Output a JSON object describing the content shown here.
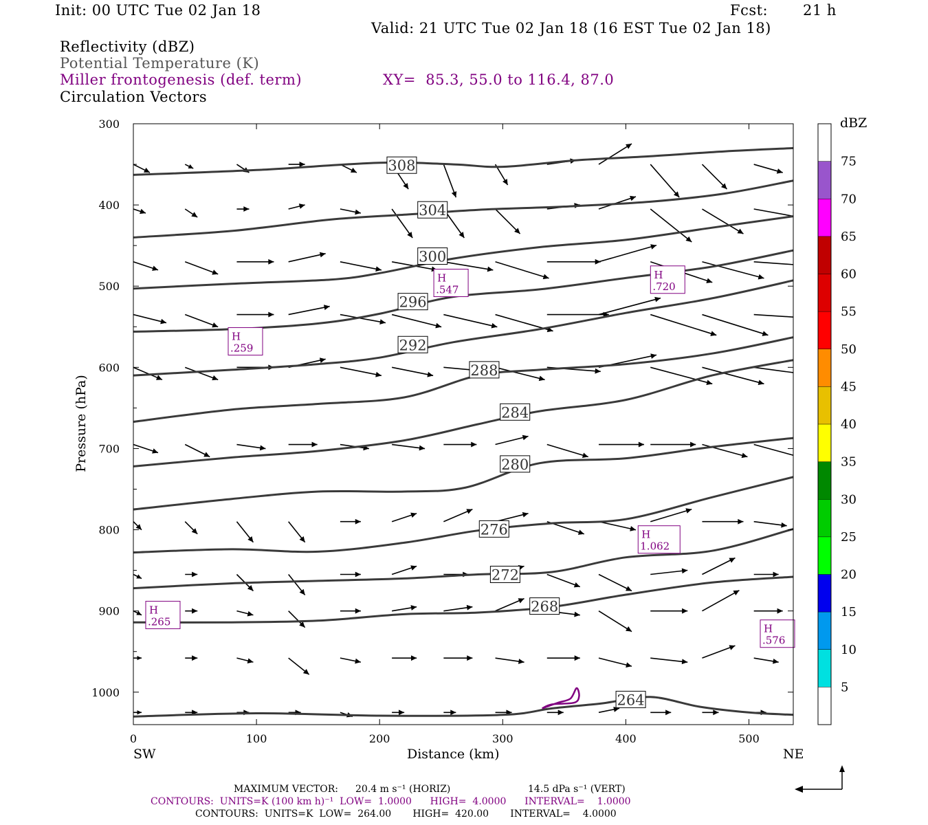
{
  "header": {
    "init": "Init: 00 UTC Tue 02 Jan 18",
    "fcst_label": "Fcst:",
    "fcst_value": "21 h",
    "valid": "Valid: 21 UTC Tue 02 Jan 18 (16 EST Tue 02 Jan 18)"
  },
  "legend": {
    "reflectivity": "Reflectivity (dBZ)",
    "theta": "Potential Temperature (K)",
    "frontogenesis": "Miller frontogenesis (def. term)",
    "xy": "XY=  85.3, 55.0 to 116.4, 87.0",
    "circulation": "Circulation Vectors"
  },
  "colors": {
    "theta_contour": "#3a3a3a",
    "frontogenesis": "#800080",
    "vector": "#000000"
  },
  "chart_data": {
    "type": "cross-section",
    "xlabel": "Distance (km)",
    "ylabel": "Pressure (hPa)",
    "xlim": [
      0,
      536
    ],
    "ylim": [
      1040,
      300
    ],
    "x_ticks": [
      0,
      100,
      200,
      300,
      400,
      500
    ],
    "y_ticks": [
      300,
      400,
      500,
      600,
      700,
      800,
      900,
      1000
    ],
    "x_end_labels": {
      "left": "SW",
      "right": "NE"
    },
    "colorbar": {
      "unit": "dBZ",
      "ticks": [
        5,
        10,
        15,
        20,
        25,
        30,
        35,
        40,
        45,
        50,
        55,
        60,
        65,
        70,
        75
      ],
      "colors": [
        "#00e0e0",
        "#0099ee",
        "#0000ee",
        "#00ff00",
        "#00cc00",
        "#008800",
        "#ffff00",
        "#e8c000",
        "#ff8c00",
        "#ff0000",
        "#dd0000",
        "#c00000",
        "#ff00ff",
        "#9955cc",
        "#ffffff"
      ]
    },
    "theta_contours": [
      {
        "label": "308",
        "label_at": [
          218,
          351
        ],
        "points": [
          [
            0,
            363
          ],
          [
            100,
            357
          ],
          [
            200,
            348
          ],
          [
            260,
            350
          ],
          [
            300,
            353
          ],
          [
            360,
            345
          ],
          [
            420,
            340
          ],
          [
            480,
            334
          ],
          [
            536,
            330
          ]
        ]
      },
      {
        "label": "304",
        "label_at": [
          243,
          406
        ],
        "points": [
          [
            0,
            440
          ],
          [
            80,
            432
          ],
          [
            160,
            418
          ],
          [
            220,
            412
          ],
          [
            280,
            406
          ],
          [
            350,
            402
          ],
          [
            420,
            396
          ],
          [
            480,
            386
          ],
          [
            536,
            370
          ]
        ]
      },
      {
        "label": "300",
        "label_at": [
          243,
          463
        ],
        "points": [
          [
            0,
            503
          ],
          [
            80,
            497
          ],
          [
            160,
            492
          ],
          [
            200,
            484
          ],
          [
            260,
            466
          ],
          [
            330,
            452
          ],
          [
            400,
            443
          ],
          [
            470,
            428
          ],
          [
            536,
            414
          ]
        ]
      },
      {
        "label": "296",
        "label_at": [
          227,
          519
        ],
        "points": [
          [
            0,
            556
          ],
          [
            80,
            553
          ],
          [
            150,
            546
          ],
          [
            200,
            534
          ],
          [
            260,
            513
          ],
          [
            330,
            504
          ],
          [
            400,
            490
          ],
          [
            470,
            476
          ],
          [
            536,
            456
          ]
        ]
      },
      {
        "label": "292",
        "label_at": [
          227,
          572
        ],
        "points": [
          [
            0,
            610
          ],
          [
            80,
            603
          ],
          [
            150,
            596
          ],
          [
            200,
            588
          ],
          [
            260,
            569
          ],
          [
            330,
            553
          ],
          [
            400,
            533
          ],
          [
            470,
            515
          ],
          [
            536,
            493
          ]
        ]
      },
      {
        "label": "288",
        "label_at": [
          285,
          603
        ],
        "points": [
          [
            0,
            667
          ],
          [
            80,
            652
          ],
          [
            150,
            645
          ],
          [
            220,
            637
          ],
          [
            280,
            610
          ],
          [
            330,
            603
          ],
          [
            400,
            596
          ],
          [
            470,
            583
          ],
          [
            536,
            563
          ]
        ]
      },
      {
        "label": "284",
        "label_at": [
          310,
          655
        ],
        "points": [
          [
            0,
            722
          ],
          [
            80,
            711
          ],
          [
            150,
            703
          ],
          [
            220,
            690
          ],
          [
            280,
            670
          ],
          [
            330,
            654
          ],
          [
            400,
            640
          ],
          [
            470,
            610
          ],
          [
            536,
            591
          ]
        ]
      },
      {
        "label": "280",
        "label_at": [
          310,
          719
        ],
        "points": [
          [
            0,
            775
          ],
          [
            80,
            762
          ],
          [
            150,
            753
          ],
          [
            220,
            753
          ],
          [
            270,
            748
          ],
          [
            330,
            718
          ],
          [
            400,
            712
          ],
          [
            470,
            698
          ],
          [
            536,
            687
          ]
        ]
      },
      {
        "label": "276",
        "label_at": [
          293,
          799
        ],
        "points": [
          [
            0,
            828
          ],
          [
            80,
            824
          ],
          [
            150,
            827
          ],
          [
            220,
            816
          ],
          [
            280,
            801
          ],
          [
            340,
            792
          ],
          [
            400,
            787
          ],
          [
            470,
            760
          ],
          [
            536,
            735
          ]
        ]
      },
      {
        "label": "272",
        "label_at": [
          302,
          855
        ],
        "points": [
          [
            0,
            872
          ],
          [
            80,
            866
          ],
          [
            150,
            863
          ],
          [
            220,
            860
          ],
          [
            280,
            855
          ],
          [
            340,
            852
          ],
          [
            400,
            834
          ],
          [
            470,
            826
          ],
          [
            536,
            799
          ]
        ]
      },
      {
        "label": "268",
        "label_at": [
          334,
          894
        ],
        "points": [
          [
            0,
            914
          ],
          [
            80,
            914
          ],
          [
            150,
            912
          ],
          [
            220,
            904
          ],
          [
            280,
            902
          ],
          [
            340,
            895
          ],
          [
            400,
            880
          ],
          [
            470,
            865
          ],
          [
            536,
            858
          ]
        ]
      },
      {
        "label": "264",
        "label_at": [
          404,
          1009
        ],
        "points": [
          [
            0,
            1030
          ],
          [
            100,
            1026
          ],
          [
            200,
            1029
          ],
          [
            300,
            1028
          ],
          [
            340,
            1020
          ],
          [
            380,
            1014
          ],
          [
            420,
            1006
          ],
          [
            460,
            1018
          ],
          [
            500,
            1025
          ],
          [
            536,
            1028
          ]
        ]
      }
    ],
    "frontogenesis_maxima": [
      {
        "label": "H",
        "value": ".547",
        "at": [
          258,
          496
        ]
      },
      {
        "label": "H",
        "value": ".720",
        "at": [
          434,
          492
        ]
      },
      {
        "label": "H",
        "value": ".259",
        "at": [
          91,
          568
        ]
      },
      {
        "label": "H",
        "value": "1.062",
        "at": [
          427,
          812
        ]
      },
      {
        "label": "H",
        "value": ".265",
        "at": [
          24,
          905
        ]
      },
      {
        "label": "H",
        "value": ".576",
        "at": [
          531,
          928
        ]
      }
    ],
    "frontogenesis_contours": [
      {
        "points": [
          [
            332,
            1020
          ],
          [
            345,
            1013
          ],
          [
            355,
            1008
          ],
          [
            360,
            995
          ],
          [
            362,
            1005
          ],
          [
            358,
            1013
          ],
          [
            340,
            1015
          ],
          [
            332,
            1020
          ]
        ]
      }
    ],
    "vector_grid": {
      "x": [
        0,
        42,
        84,
        126,
        168,
        210,
        252,
        294,
        336,
        378,
        420,
        462,
        504,
        536
      ],
      "levels": [
        {
          "p": 350,
          "u": [
            0.4,
            0.2,
            0.3,
            0.4,
            0.4,
            0.4,
            0.3,
            0.3,
            0.7,
            0.8,
            0.7,
            0.6,
            0.7,
            0.0
          ],
          "w": [
            -0.2,
            -0.1,
            -0.2,
            0.0,
            -0.2,
            -0.6,
            -0.8,
            -0.5,
            0.1,
            0.5,
            -0.8,
            -0.6,
            -0.2,
            0.0
          ]
        },
        {
          "p": 405,
          "u": [
            0.3,
            0.3,
            0.3,
            0.4,
            0.5,
            0.5,
            0.5,
            0.6,
            0.8,
            0.9,
            1.0,
            1.0,
            1.1,
            0.5
          ],
          "w": [
            -0.1,
            -0.2,
            0.0,
            0.1,
            -0.1,
            -0.7,
            -0.7,
            -0.6,
            0.1,
            0.3,
            -0.8,
            -0.6,
            -0.2,
            -0.1
          ]
        },
        {
          "p": 470,
          "u": [
            0.6,
            0.8,
            0.9,
            0.9,
            1.0,
            1.1,
            1.2,
            1.3,
            1.3,
            1.4,
            1.5,
            1.5,
            1.4,
            0.6
          ],
          "w": [
            -0.2,
            -0.3,
            0.0,
            0.2,
            -0.2,
            -0.2,
            -0.2,
            -0.4,
            0.0,
            0.4,
            -0.5,
            -0.4,
            -0.1,
            -0.1
          ]
        },
        {
          "p": 535,
          "u": [
            0.8,
            0.8,
            0.9,
            1.0,
            1.1,
            1.2,
            1.3,
            1.4,
            1.5,
            1.5,
            1.6,
            1.6,
            1.6,
            0.7
          ],
          "w": [
            -0.2,
            -0.3,
            0.0,
            0.2,
            -0.2,
            -0.3,
            -0.3,
            -0.4,
            0.0,
            0.4,
            -0.5,
            -0.5,
            -0.1,
            0.0
          ]
        },
        {
          "p": 600,
          "u": [
            0.7,
            0.8,
            0.9,
            0.9,
            1.0,
            1.0,
            1.1,
            1.2,
            1.3,
            1.4,
            1.5,
            1.5,
            1.5,
            0.6
          ],
          "w": [
            -0.3,
            -0.3,
            0.0,
            0.2,
            -0.2,
            -0.2,
            -0.1,
            -0.3,
            -0.1,
            0.3,
            -0.4,
            -0.4,
            -0.2,
            -0.1
          ]
        },
        {
          "p": 695,
          "u": [
            0.6,
            0.6,
            0.7,
            0.7,
            0.7,
            0.8,
            0.8,
            0.8,
            1.0,
            1.1,
            1.1,
            1.1,
            1.1,
            0.5
          ],
          "w": [
            -0.2,
            -0.3,
            -0.1,
            0.0,
            -0.1,
            -0.1,
            0.0,
            0.2,
            -0.3,
            0.0,
            0.0,
            -0.3,
            -0.3,
            0.0
          ]
        },
        {
          "p": 790,
          "u": [
            0.2,
            0.3,
            0.4,
            0.4,
            0.5,
            0.6,
            0.7,
            0.8,
            0.9,
            0.9,
            1.0,
            1.0,
            0.8,
            0.3
          ],
          "w": [
            -0.2,
            -0.3,
            -0.5,
            -0.5,
            0.0,
            0.2,
            0.3,
            0.2,
            -0.3,
            -0.2,
            0.3,
            0.0,
            -0.1,
            0.0
          ]
        },
        {
          "p": 855,
          "u": [
            0.2,
            0.3,
            0.4,
            0.4,
            0.5,
            0.6,
            0.6,
            0.7,
            0.8,
            0.8,
            0.9,
            0.8,
            0.6,
            0.2
          ],
          "w": [
            -0.1,
            0.0,
            -0.4,
            -0.5,
            0.0,
            0.2,
            0.0,
            0.2,
            -0.3,
            -0.4,
            0.1,
            0.4,
            0.0,
            0.0
          ]
        },
        {
          "p": 900,
          "u": [
            0.2,
            0.3,
            0.4,
            0.4,
            0.5,
            0.6,
            0.7,
            0.7,
            0.8,
            0.8,
            0.9,
            0.9,
            0.7,
            0.3
          ],
          "w": [
            -0.1,
            0.0,
            -0.1,
            -0.4,
            0.0,
            0.1,
            0.1,
            0.3,
            -0.1,
            -0.5,
            0.0,
            0.5,
            0.0,
            0.0
          ]
        },
        {
          "p": 958,
          "u": [
            0.2,
            0.3,
            0.4,
            0.5,
            0.5,
            0.6,
            0.7,
            0.7,
            0.8,
            0.8,
            0.9,
            0.8,
            0.6,
            0.2
          ],
          "w": [
            0.0,
            0.0,
            -0.1,
            -0.4,
            -0.1,
            0.0,
            0.0,
            -0.1,
            0.0,
            -0.2,
            -0.1,
            0.3,
            -0.1,
            0.0
          ]
        },
        {
          "p": 1025,
          "u": [
            0.2,
            0.3,
            0.3,
            0.3,
            0.3,
            0.3,
            0.3,
            0.4,
            0.4,
            0.5,
            0.5,
            0.4,
            0.3,
            0.1
          ],
          "w": [
            0.0,
            0.0,
            0.0,
            0.0,
            -0.1,
            0.0,
            0.0,
            0.0,
            0.0,
            0.1,
            0.0,
            0.0,
            0.0,
            0.0
          ]
        }
      ]
    }
  },
  "footer": {
    "max_vector_label": "MAXIMUM VECTOR:",
    "max_vector_horiz": "20.4 m s⁻¹ (HORIZ)",
    "max_vector_vert": "14.5 dPa s⁻¹ (VERT)",
    "contours_purple": "CONTOURS:  UNITS=K (100 km h)⁻¹  LOW=  1.0000      HIGH=  4.0000      INTERVAL=    1.0000",
    "contours_black": "CONTOURS:  UNITS=K  LOW=  264.00       HIGH=  420.00       INTERVAL=    4.0000"
  }
}
